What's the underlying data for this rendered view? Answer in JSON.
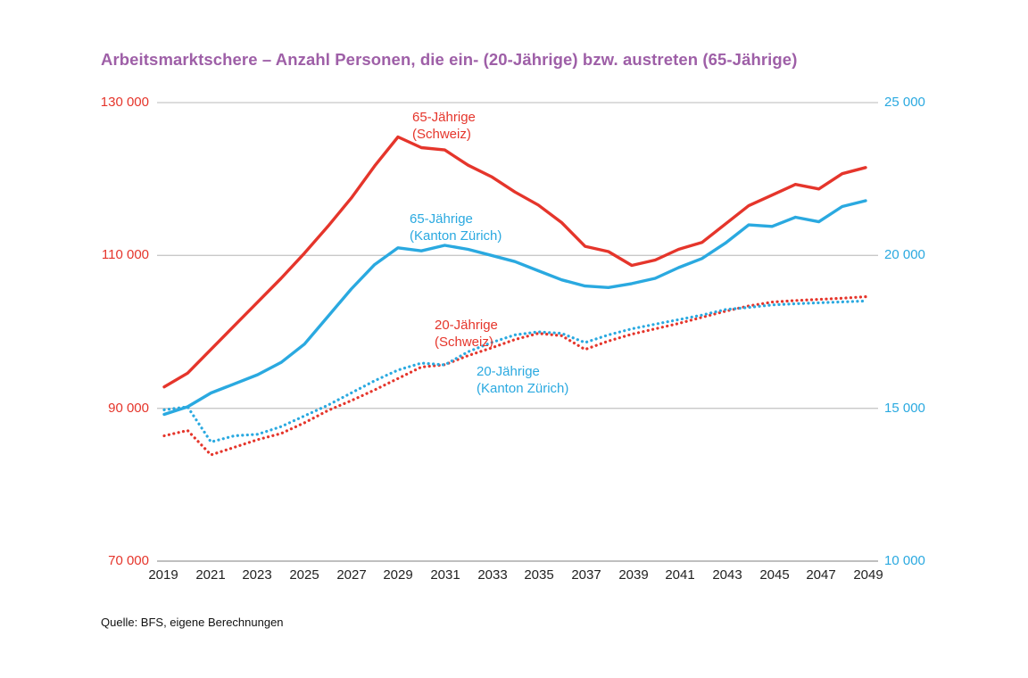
{
  "title": "Arbeitsmarktschere – Anzahl Personen, die ein- (20-Jährige) bzw. austreten (65-Jährige)",
  "source": "Quelle: BFS, eigene Berechnungen",
  "colors": {
    "red": "#e5352b",
    "blue": "#2aa9e0",
    "purple": "#9e5fa7",
    "grid": "#c8c8c8",
    "axis_line": "#aaaaaa",
    "tick_text": "#222222"
  },
  "chart_data": {
    "type": "line",
    "title": "Arbeitsmarktschere – Anzahl Personen, die ein- (20-Jährige) bzw. austreten (65-Jährige)",
    "grid": "horizontal",
    "legend_position": "inline-annotations",
    "x": [
      2019,
      2020,
      2021,
      2022,
      2023,
      2024,
      2025,
      2026,
      2027,
      2028,
      2029,
      2030,
      2031,
      2032,
      2033,
      2034,
      2035,
      2036,
      2037,
      2038,
      2039,
      2040,
      2041,
      2042,
      2043,
      2044,
      2045,
      2046,
      2047,
      2048,
      2049
    ],
    "x_tick_labels": [
      "2019",
      "2021",
      "2023",
      "2025",
      "2027",
      "2029",
      "2031",
      "2033",
      "2035",
      "2037",
      "2039",
      "2041",
      "2043",
      "2045",
      "2047",
      "2049"
    ],
    "left_axis": {
      "range": [
        70000,
        130000
      ],
      "tick_labels": [
        "130 000",
        "110 000",
        "90 000",
        "70 000"
      ],
      "color_key": "red"
    },
    "right_axis": {
      "range": [
        10000,
        25000
      ],
      "tick_labels": [
        "25 000",
        "20 000",
        "15 000",
        "10 000"
      ],
      "color_key": "blue"
    },
    "series": [
      {
        "name": "65-Jährige (Schweiz)",
        "label": "65-Jährige\n(Schweiz)",
        "axis": "left",
        "style": "solid",
        "color_key": "red",
        "values": [
          92800,
          94600,
          97700,
          100800,
          103900,
          107000,
          110300,
          113800,
          117500,
          121700,
          125500,
          124100,
          123800,
          121800,
          120300,
          118300,
          116600,
          114300,
          111200,
          110500,
          108700,
          109400,
          110800,
          111700,
          114100,
          116500,
          117900,
          119300,
          118700,
          120700,
          121500
        ]
      },
      {
        "name": "65-Jährige (Kanton Zürich)",
        "label": "65-Jährige\n(Kanton Zürich)",
        "axis": "right",
        "style": "solid",
        "color_key": "blue",
        "values": [
          14800,
          15050,
          15500,
          15800,
          16100,
          16500,
          17100,
          18000,
          18900,
          19700,
          20250,
          20150,
          20330,
          20200,
          20000,
          19800,
          19500,
          19200,
          19000,
          18950,
          19080,
          19250,
          19600,
          19900,
          20400,
          21000,
          20950,
          21250,
          21100,
          21600,
          21790
        ]
      },
      {
        "name": "20-Jährige (Schweiz)",
        "label": "20-Jährige\n(Schweiz)",
        "axis": "left",
        "style": "dotted",
        "color_key": "red",
        "values": [
          86400,
          87100,
          83900,
          84900,
          85900,
          86700,
          88100,
          89700,
          91000,
          92400,
          93900,
          95400,
          95700,
          96900,
          97900,
          99000,
          99800,
          99500,
          97700,
          98800,
          99700,
          100400,
          101100,
          101900,
          102700,
          103400,
          103900,
          104100,
          104250,
          104400,
          104600
        ]
      },
      {
        "name": "20-Jährige (Kanton Zürich)",
        "label": "20-Jährige\n(Kanton Zürich)",
        "axis": "right",
        "style": "dotted",
        "color_key": "blue",
        "values": [
          14950,
          15050,
          13900,
          14100,
          14150,
          14400,
          14750,
          15100,
          15500,
          15900,
          16250,
          16480,
          16420,
          16850,
          17150,
          17400,
          17500,
          17450,
          17150,
          17400,
          17600,
          17750,
          17900,
          18050,
          18230,
          18300,
          18380,
          18420,
          18450,
          18480,
          18510
        ]
      }
    ]
  }
}
